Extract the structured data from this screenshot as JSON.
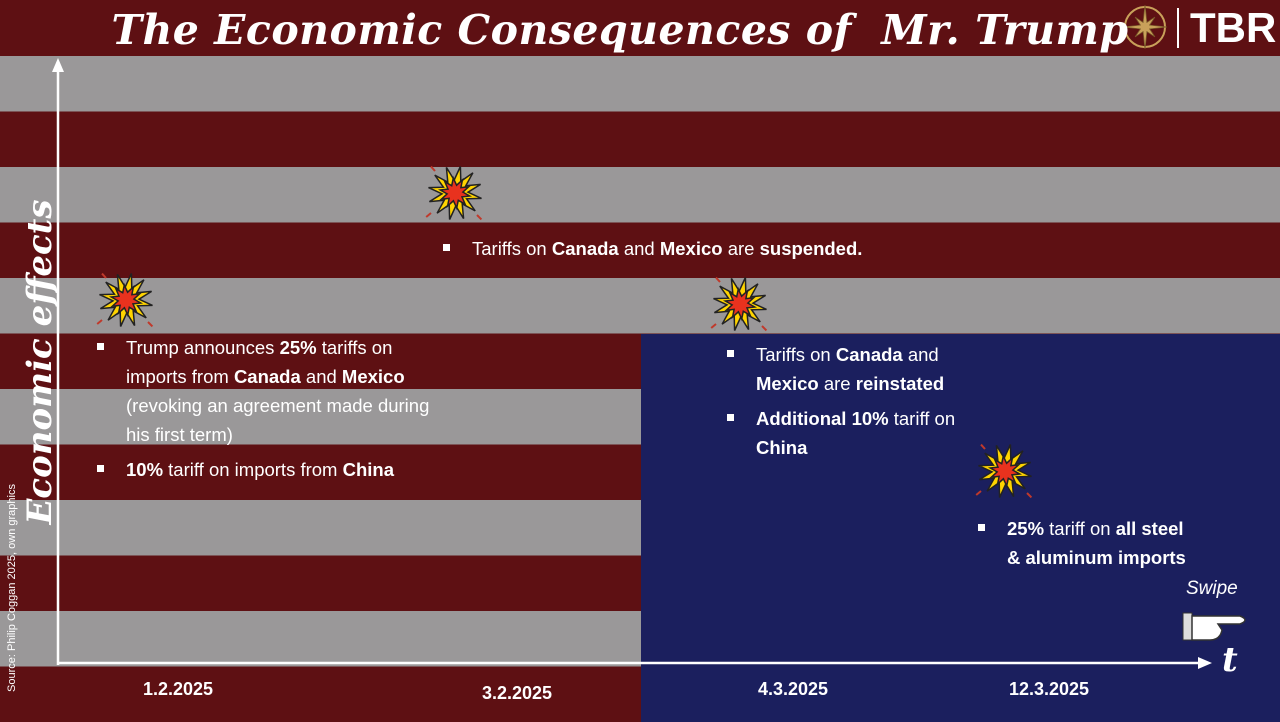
{
  "header": {
    "title": "The Economic Consequences of  Mr. Trump",
    "logo": "TBR"
  },
  "axes": {
    "y_label": "Economic effects",
    "x_label": "t"
  },
  "source": "Source: Philip Coggan 2025, own graphics",
  "swipe": "Swipe",
  "events": [
    {
      "date": "1.2.2025",
      "bullets": [
        [
          {
            "text": "Trump announces ",
            "bold": false
          },
          {
            "text": "25%",
            "bold": true
          },
          {
            "text": " tariffs on imports from ",
            "bold": false
          },
          {
            "text": "Canada",
            "bold": true
          },
          {
            "text": " and ",
            "bold": false
          },
          {
            "text": "Mexico",
            "bold": true
          },
          {
            "text": " (revoking an agreement made during his first term)",
            "bold": false
          }
        ],
        [
          {
            "text": "10%",
            "bold": true
          },
          {
            "text": " tariff on imports from ",
            "bold": false
          },
          {
            "text": "China",
            "bold": true
          }
        ]
      ]
    },
    {
      "date": "3.2.2025",
      "bullets": [
        [
          {
            "text": "Tariffs on ",
            "bold": false
          },
          {
            "text": "Canada",
            "bold": true
          },
          {
            "text": " and ",
            "bold": false
          },
          {
            "text": "Mexico",
            "bold": true
          },
          {
            "text": " are ",
            "bold": false
          },
          {
            "text": "suspended.",
            "bold": true
          }
        ]
      ]
    },
    {
      "date": "4.3.2025",
      "bullets": [
        [
          {
            "text": "Tariffs on ",
            "bold": false
          },
          {
            "text": "Canada",
            "bold": true
          },
          {
            "text": " and ",
            "bold": false
          },
          {
            "text": "Mexico",
            "bold": true
          },
          {
            "text": " are ",
            "bold": false
          },
          {
            "text": "reinstated",
            "bold": true
          }
        ],
        [
          {
            "text": "Additional 10%",
            "bold": true
          },
          {
            "text": " tariff on ",
            "bold": false
          },
          {
            "text": "China",
            "bold": true
          }
        ]
      ]
    },
    {
      "date": "12.3.2025",
      "bullets": [
        [
          {
            "text": "25%",
            "bold": true
          },
          {
            "text": " tariff on ",
            "bold": false
          },
          {
            "text": "all steel & aluminum imports",
            "bold": true
          }
        ]
      ]
    }
  ]
}
